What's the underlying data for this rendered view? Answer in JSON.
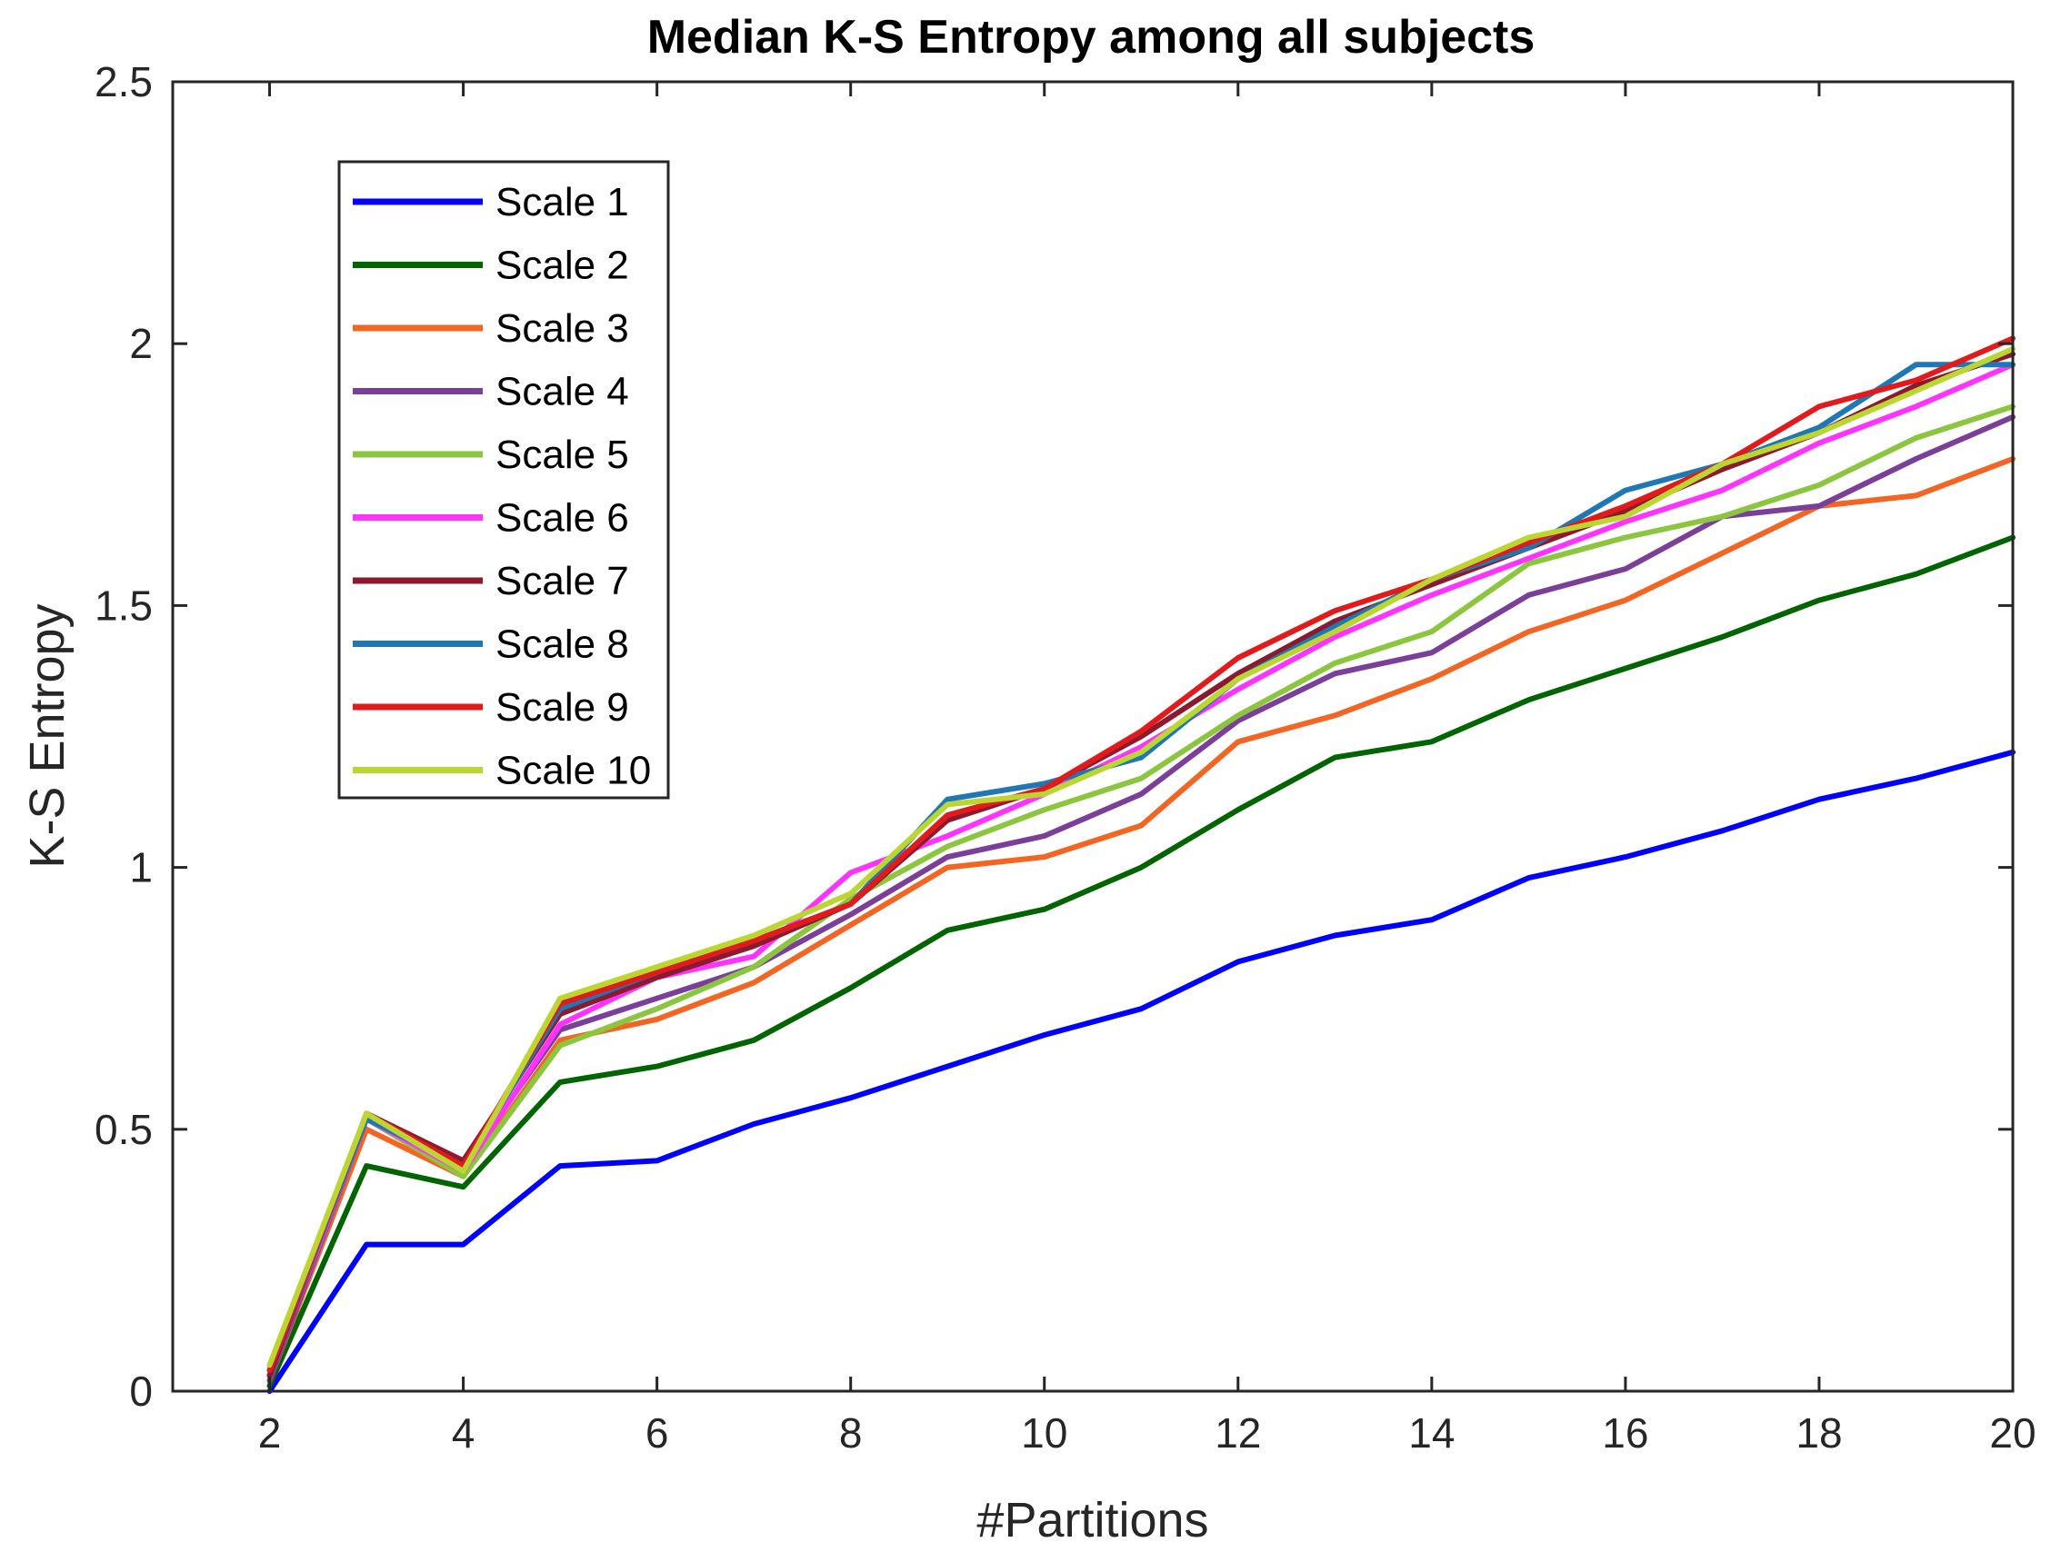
{
  "chart_data": {
    "type": "line",
    "title": "Median K-S Entropy among all subjects",
    "xlabel": "#Partitions",
    "ylabel": "K-S Entropy",
    "xlim": [
      1,
      20
    ],
    "ylim": [
      0,
      2.5
    ],
    "xticks": [
      2,
      4,
      6,
      8,
      10,
      12,
      14,
      16,
      18,
      20
    ],
    "yticks": [
      0,
      0.5,
      1,
      1.5,
      2,
      2.5
    ],
    "xtick_labels": [
      "2",
      "4",
      "6",
      "8",
      "10",
      "12",
      "14",
      "16",
      "18",
      "20"
    ],
    "ytick_labels": [
      "0",
      "0.5",
      "1",
      "1.5",
      "2",
      "2.5"
    ],
    "grid": false,
    "legend_position": "top-left",
    "x": [
      2,
      3,
      4,
      5,
      6,
      7,
      8,
      9,
      10,
      11,
      12,
      13,
      14,
      15,
      16,
      17,
      18,
      19,
      20
    ],
    "series": [
      {
        "name": "Scale 1",
        "color": "#0000ff",
        "values": [
          0.0,
          0.28,
          0.28,
          0.43,
          0.44,
          0.51,
          0.56,
          0.62,
          0.68,
          0.73,
          0.82,
          0.87,
          0.9,
          0.98,
          1.02,
          1.07,
          1.13,
          1.17,
          1.22
        ]
      },
      {
        "name": "Scale 2",
        "color": "#006400",
        "values": [
          0.01,
          0.43,
          0.39,
          0.59,
          0.62,
          0.67,
          0.77,
          0.88,
          0.92,
          1.0,
          1.11,
          1.21,
          1.24,
          1.32,
          1.38,
          1.44,
          1.51,
          1.56,
          1.63
        ]
      },
      {
        "name": "Scale 3",
        "color": "#f26522",
        "values": [
          0.02,
          0.5,
          0.41,
          0.67,
          0.71,
          0.78,
          0.89,
          1.0,
          1.02,
          1.08,
          1.24,
          1.29,
          1.36,
          1.45,
          1.51,
          1.6,
          1.69,
          1.71,
          1.78
        ]
      },
      {
        "name": "Scale 4",
        "color": "#7b3f99",
        "values": [
          0.02,
          0.52,
          0.43,
          0.69,
          0.75,
          0.81,
          0.91,
          1.02,
          1.06,
          1.14,
          1.28,
          1.37,
          1.41,
          1.52,
          1.57,
          1.67,
          1.69,
          1.78,
          1.86
        ]
      },
      {
        "name": "Scale 5",
        "color": "#8cc63f",
        "values": [
          0.03,
          0.52,
          0.41,
          0.66,
          0.73,
          0.81,
          0.94,
          1.04,
          1.11,
          1.17,
          1.29,
          1.39,
          1.45,
          1.58,
          1.63,
          1.67,
          1.73,
          1.82,
          1.88
        ]
      },
      {
        "name": "Scale 6",
        "color": "#ff33ff",
        "values": [
          0.03,
          0.52,
          0.42,
          0.7,
          0.79,
          0.83,
          0.99,
          1.06,
          1.14,
          1.23,
          1.34,
          1.44,
          1.52,
          1.59,
          1.66,
          1.72,
          1.81,
          1.88,
          1.96
        ]
      },
      {
        "name": "Scale 7",
        "color": "#8b1a2f",
        "values": [
          0.03,
          0.53,
          0.44,
          0.72,
          0.79,
          0.85,
          0.93,
          1.09,
          1.15,
          1.25,
          1.37,
          1.47,
          1.54,
          1.61,
          1.68,
          1.76,
          1.83,
          1.92,
          1.98
        ]
      },
      {
        "name": "Scale 8",
        "color": "#1f77b4",
        "values": [
          0.04,
          0.52,
          0.43,
          0.73,
          0.8,
          0.86,
          0.93,
          1.13,
          1.16,
          1.21,
          1.36,
          1.46,
          1.55,
          1.61,
          1.72,
          1.77,
          1.84,
          1.96,
          1.96
        ]
      },
      {
        "name": "Scale 9",
        "color": "#e31a1c",
        "values": [
          0.04,
          0.53,
          0.43,
          0.74,
          0.8,
          0.86,
          0.93,
          1.1,
          1.15,
          1.26,
          1.4,
          1.49,
          1.55,
          1.62,
          1.69,
          1.77,
          1.88,
          1.93,
          2.01
        ]
      },
      {
        "name": "Scale 10",
        "color": "#bcd631",
        "values": [
          0.05,
          0.53,
          0.42,
          0.75,
          0.81,
          0.87,
          0.95,
          1.12,
          1.14,
          1.22,
          1.36,
          1.45,
          1.55,
          1.63,
          1.67,
          1.77,
          1.83,
          1.91,
          1.99
        ]
      }
    ]
  }
}
